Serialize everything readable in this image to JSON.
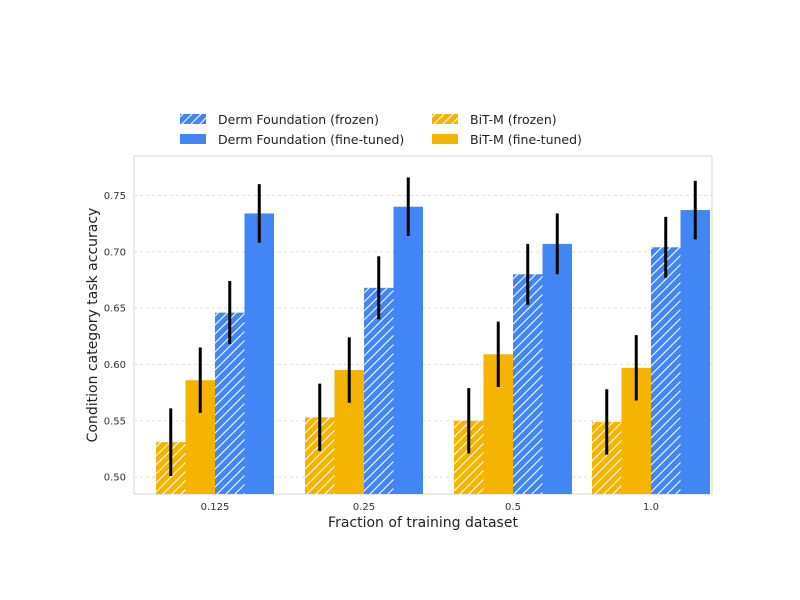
{
  "chart_data": {
    "type": "bar",
    "title": "",
    "xlabel": "Fraction of training dataset",
    "ylabel": "Condition category task accuracy",
    "categories": [
      "0.125",
      "0.25",
      "0.5",
      "1.0"
    ],
    "ylim": [
      0.485,
      0.785
    ],
    "yticks": [
      "0.50",
      "0.55",
      "0.60",
      "0.65",
      "0.70",
      "0.75"
    ],
    "grid": true,
    "legend_position": "top",
    "series": [
      {
        "name": "BiT-M (frozen)",
        "color": "#f4b400",
        "hatched": true,
        "values": [
          0.531,
          0.553,
          0.55,
          0.549
        ],
        "err": [
          0.03,
          0.03,
          0.029,
          0.029
        ]
      },
      {
        "name": "BiT-M (fine-tuned)",
        "color": "#f4b400",
        "hatched": false,
        "values": [
          0.586,
          0.595,
          0.609,
          0.597
        ],
        "err": [
          0.029,
          0.029,
          0.029,
          0.029
        ]
      },
      {
        "name": "Derm Foundation (frozen)",
        "color": "#4285f4",
        "hatched": true,
        "values": [
          0.646,
          0.668,
          0.68,
          0.704
        ],
        "err": [
          0.028,
          0.028,
          0.027,
          0.027
        ]
      },
      {
        "name": "Derm Foundation (fine-tuned)",
        "color": "#4285f4",
        "hatched": false,
        "values": [
          0.734,
          0.74,
          0.707,
          0.737
        ],
        "err": [
          0.026,
          0.026,
          0.027,
          0.026
        ]
      }
    ],
    "legend_order": [
      2,
      0,
      3,
      1
    ]
  }
}
